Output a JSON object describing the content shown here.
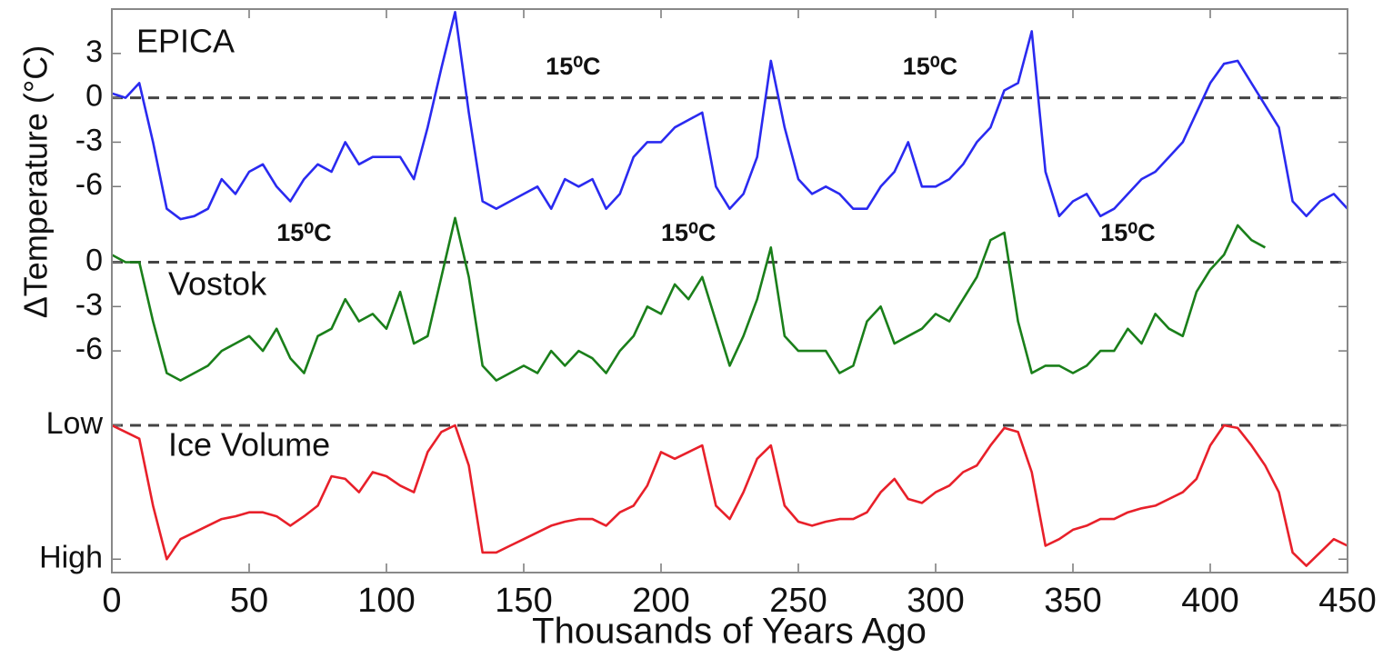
{
  "chart_data": [
    {
      "type": "line",
      "y_label": "ΔTemperature (°C)",
      "x": [
        0,
        5,
        10,
        15,
        20,
        25,
        30,
        35,
        40,
        45,
        50,
        55,
        60,
        65,
        70,
        75,
        80,
        85,
        90,
        95,
        100,
        105,
        110,
        115,
        120,
        125,
        130,
        135,
        140,
        145,
        150,
        155,
        160,
        165,
        170,
        175,
        180,
        185,
        190,
        195,
        200,
        205,
        210,
        215,
        220,
        225,
        230,
        235,
        240,
        245,
        250,
        255,
        260,
        265,
        270,
        275,
        280,
        285,
        290,
        295,
        300,
        305,
        310,
        315,
        320,
        325,
        330,
        335,
        340,
        345,
        350,
        355,
        360,
        365,
        370,
        375,
        380,
        385,
        390,
        395,
        400,
        405,
        410,
        415,
        420,
        425,
        430,
        435,
        440,
        445,
        450
      ],
      "xlim": [
        0,
        450
      ],
      "series": [
        {
          "name": "EPICA",
          "color": "#2a2af0",
          "values": [
            0.3,
            0,
            1,
            -3,
            -7.5,
            -8.2,
            -8,
            -7.5,
            -5.5,
            -6.5,
            -5,
            -4.5,
            -6,
            -7,
            -5.5,
            -4.5,
            -5,
            -3,
            -4.5,
            -4,
            -4,
            -4,
            -5.5,
            -2,
            2,
            5.8,
            -1,
            -7,
            -7.5,
            -7,
            -6.5,
            -6,
            -7.5,
            -5.5,
            -6,
            -5.5,
            -7.5,
            -6.5,
            -4,
            -3,
            -3,
            -2,
            -1.5,
            -1,
            -6,
            -7.5,
            -6.5,
            -4,
            2.5,
            -2,
            -5.5,
            -6.5,
            -6,
            -6.5,
            -7.5,
            -7.5,
            -6,
            -5,
            -3,
            -6,
            -6,
            -5.5,
            -4.5,
            -3,
            -2,
            0.5,
            1,
            4.5,
            -5,
            -8,
            -7,
            -6.5,
            -8,
            -7.5,
            -6.5,
            -5.5,
            -5,
            -4,
            -3,
            -1,
            1,
            2.3,
            2.5,
            1,
            -0.5,
            -2,
            -7,
            -8,
            -7,
            -6.5,
            -7.5
          ]
        }
      ],
      "ylim": [
        -8.75,
        6
      ],
      "yticks": [
        -6,
        -3,
        0,
        3
      ],
      "dashed_line": 0,
      "annotations": [
        "15⁰C",
        "15⁰C"
      ]
    },
    {
      "type": "line",
      "x": [
        0,
        5,
        10,
        15,
        20,
        25,
        30,
        35,
        40,
        45,
        50,
        55,
        60,
        65,
        70,
        75,
        80,
        85,
        90,
        95,
        100,
        105,
        110,
        115,
        120,
        125,
        130,
        135,
        140,
        145,
        150,
        155,
        160,
        165,
        170,
        175,
        180,
        185,
        190,
        195,
        200,
        205,
        210,
        215,
        220,
        225,
        230,
        235,
        240,
        245,
        250,
        255,
        260,
        265,
        270,
        275,
        280,
        285,
        290,
        295,
        300,
        305,
        310,
        315,
        320,
        325,
        330,
        335,
        340,
        345,
        350,
        355,
        360,
        365,
        370,
        375,
        380,
        385,
        390,
        395,
        400,
        405,
        410,
        415,
        420,
        425,
        430,
        435,
        440,
        445,
        450
      ],
      "xlim": [
        0,
        450
      ],
      "series": [
        {
          "name": "Vostok",
          "color": "#1a7f1a",
          "values": [
            0.5,
            0,
            0,
            -4,
            -7.5,
            -8,
            -7.5,
            -7,
            -6,
            -5.5,
            -5,
            -6,
            -4.5,
            -6.5,
            -7.5,
            -5,
            -4.5,
            -2.5,
            -4,
            -3.5,
            -4.5,
            -2,
            -5.5,
            -5,
            -1,
            3,
            -1,
            -7,
            -8,
            -7.5,
            -7,
            -7.5,
            -6,
            -7,
            -6,
            -6.5,
            -7.5,
            -6,
            -5,
            -3,
            -3.5,
            -1.5,
            -2.5,
            -1,
            -4,
            -7,
            -5,
            -2.5,
            1,
            -5,
            -6,
            -6,
            -6,
            -7.5,
            -7,
            -4,
            -3,
            -5.5,
            -5,
            -4.5,
            -3.5,
            -4,
            -2.5,
            -1,
            1.5,
            2,
            -4,
            -7.5,
            -7,
            -7,
            -7.5,
            -7,
            -6,
            -6,
            -4.5,
            -5.5,
            -3.5,
            -4.5,
            -5,
            -2,
            -0.5,
            0.5,
            2.5,
            1.5,
            1,
            null,
            null,
            null,
            null,
            null,
            null
          ]
        }
      ],
      "ylim": [
        -8.7,
        3.6
      ],
      "yticks": [
        -6,
        -3,
        0
      ],
      "dashed_line": 0,
      "annotations": [
        "15⁰C",
        "15⁰C",
        "15⁰C"
      ]
    },
    {
      "type": "line",
      "x": [
        0,
        5,
        10,
        15,
        20,
        25,
        30,
        35,
        40,
        45,
        50,
        55,
        60,
        65,
        70,
        75,
        80,
        85,
        90,
        95,
        100,
        105,
        110,
        115,
        120,
        125,
        130,
        135,
        140,
        145,
        150,
        155,
        160,
        165,
        170,
        175,
        180,
        185,
        190,
        195,
        200,
        205,
        210,
        215,
        220,
        225,
        230,
        235,
        240,
        245,
        250,
        255,
        260,
        265,
        270,
        275,
        280,
        285,
        290,
        295,
        300,
        305,
        310,
        315,
        320,
        325,
        330,
        335,
        340,
        345,
        350,
        355,
        360,
        365,
        370,
        375,
        380,
        385,
        390,
        395,
        400,
        405,
        410,
        415,
        420,
        425,
        430,
        435,
        440,
        445,
        450
      ],
      "xlim": [
        0,
        450
      ],
      "xticks": [
        0,
        50,
        100,
        150,
        200,
        250,
        300,
        350,
        400,
        450
      ],
      "x_label": "Thousands of Years Ago",
      "series": [
        {
          "name": "Ice Volume",
          "color": "#e8202a",
          "values": [
            0,
            0.05,
            0.1,
            0.6,
            1,
            0.85,
            0.8,
            0.75,
            0.7,
            0.68,
            0.65,
            0.65,
            0.68,
            0.75,
            0.68,
            0.6,
            0.38,
            0.4,
            0.5,
            0.35,
            0.38,
            0.45,
            0.5,
            0.2,
            0.05,
            0,
            0.3,
            0.95,
            0.95,
            0.9,
            0.85,
            0.8,
            0.75,
            0.72,
            0.7,
            0.7,
            0.75,
            0.65,
            0.6,
            0.45,
            0.2,
            0.25,
            0.2,
            0.15,
            0.6,
            0.7,
            0.5,
            0.25,
            0.15,
            0.6,
            0.72,
            0.75,
            0.72,
            0.7,
            0.7,
            0.65,
            0.5,
            0.4,
            0.55,
            0.58,
            0.5,
            0.45,
            0.35,
            0.3,
            0.15,
            0.02,
            0.05,
            0.35,
            0.9,
            0.85,
            0.78,
            0.75,
            0.7,
            0.7,
            0.65,
            0.62,
            0.6,
            0.55,
            0.5,
            0.4,
            0.15,
            0,
            0.02,
            0.15,
            0.3,
            0.5,
            0.95,
            1.05,
            0.95,
            0.85,
            0.9
          ]
        }
      ],
      "ylim": [
        1.1,
        -0.19
      ],
      "yticks": [
        {
          "value": 0,
          "label": "Low"
        },
        {
          "value": 1,
          "label": "High"
        }
      ],
      "dashed_line": 0
    }
  ]
}
